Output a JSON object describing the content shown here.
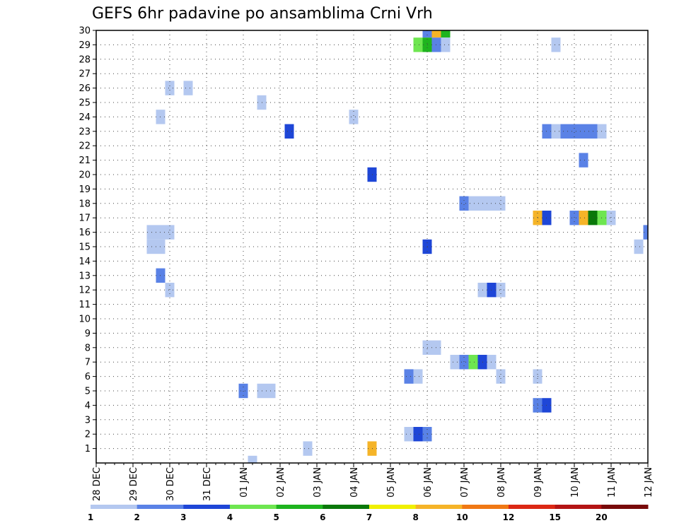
{
  "chart_data": {
    "type": "heatmap",
    "title": "GEFS 6hr padavine po ansamblima Crni Vrh",
    "xlabel": "",
    "ylabel": "",
    "x_ticks": [
      "28 DEC",
      "29 DEC",
      "30 DEC",
      "31 DEC",
      "01 JAN",
      "02 JAN",
      "03 JAN",
      "04 JAN",
      "05 JAN",
      "06 JAN",
      "07 JAN",
      "08 JAN",
      "09 JAN",
      "10 JAN",
      "11 JAN",
      "12 JAN"
    ],
    "y_ticks": [
      1,
      2,
      3,
      4,
      5,
      6,
      7,
      8,
      9,
      10,
      11,
      12,
      13,
      14,
      15,
      16,
      17,
      18,
      19,
      20,
      21,
      22,
      23,
      24,
      25,
      26,
      27,
      28,
      29,
      30
    ],
    "xlim": [
      0,
      60
    ],
    "ylim": [
      0,
      30
    ],
    "grid": true,
    "colorbar": {
      "labels": [
        "1",
        "2",
        "3",
        "4",
        "5",
        "6",
        "7",
        "8",
        "10",
        "12",
        "15",
        "20"
      ],
      "colors": [
        "#b4c8f0",
        "#5a82e6",
        "#1e46d7",
        "#6ee650",
        "#1eb41e",
        "#0a780a",
        "#f0f000",
        "#f5b428",
        "#f07814",
        "#dc2814",
        "#b41414",
        "#780a0a"
      ]
    },
    "cells": [
      {
        "t": 36,
        "m": 30,
        "c": 1
      },
      {
        "t": 37,
        "m": 30,
        "c": 7
      },
      {
        "t": 38,
        "m": 30,
        "c": 4
      },
      {
        "t": 35,
        "m": 29,
        "c": 3
      },
      {
        "t": 36,
        "m": 29,
        "c": 4
      },
      {
        "t": 37,
        "m": 29,
        "c": 1
      },
      {
        "t": 38,
        "m": 29,
        "c": 0
      },
      {
        "t": 50,
        "m": 29,
        "c": 0
      },
      {
        "t": 8,
        "m": 26,
        "c": 0
      },
      {
        "t": 10,
        "m": 26,
        "c": 0
      },
      {
        "t": 18,
        "m": 25,
        "c": 0
      },
      {
        "t": 7,
        "m": 24,
        "c": 0
      },
      {
        "t": 28,
        "m": 24,
        "c": 0
      },
      {
        "t": 21,
        "m": 23,
        "c": 2
      },
      {
        "t": 49,
        "m": 23,
        "c": 1
      },
      {
        "t": 50,
        "m": 23,
        "c": 0
      },
      {
        "t": 51,
        "m": 23,
        "c": 1
      },
      {
        "t": 52,
        "m": 23,
        "c": 1
      },
      {
        "t": 53,
        "m": 23,
        "c": 1
      },
      {
        "t": 54,
        "m": 23,
        "c": 1
      },
      {
        "t": 55,
        "m": 23,
        "c": 0
      },
      {
        "t": 53,
        "m": 21,
        "c": 1
      },
      {
        "t": 30,
        "m": 20,
        "c": 2
      },
      {
        "t": 40,
        "m": 18,
        "c": 1
      },
      {
        "t": 41,
        "m": 18,
        "c": 0
      },
      {
        "t": 42,
        "m": 18,
        "c": 0
      },
      {
        "t": 43,
        "m": 18,
        "c": 0
      },
      {
        "t": 44,
        "m": 18,
        "c": 0
      },
      {
        "t": 48,
        "m": 17,
        "c": 7
      },
      {
        "t": 49,
        "m": 17,
        "c": 2
      },
      {
        "t": 52,
        "m": 17,
        "c": 1
      },
      {
        "t": 53,
        "m": 17,
        "c": 7
      },
      {
        "t": 54,
        "m": 17,
        "c": 5
      },
      {
        "t": 55,
        "m": 17,
        "c": 3
      },
      {
        "t": 56,
        "m": 17,
        "c": 0
      },
      {
        "t": 6,
        "m": 16,
        "c": 0
      },
      {
        "t": 7,
        "m": 16,
        "c": 0
      },
      {
        "t": 8,
        "m": 16,
        "c": 0
      },
      {
        "t": 60,
        "m": 16,
        "c": 1
      },
      {
        "t": 6,
        "m": 15,
        "c": 0
      },
      {
        "t": 7,
        "m": 15,
        "c": 0
      },
      {
        "t": 36,
        "m": 15,
        "c": 2
      },
      {
        "t": 59,
        "m": 15,
        "c": 0
      },
      {
        "t": 7,
        "m": 13,
        "c": 1
      },
      {
        "t": 8,
        "m": 12,
        "c": 0
      },
      {
        "t": 42,
        "m": 12,
        "c": 0
      },
      {
        "t": 43,
        "m": 12,
        "c": 2
      },
      {
        "t": 44,
        "m": 12,
        "c": 0
      },
      {
        "t": 36,
        "m": 8,
        "c": 0
      },
      {
        "t": 37,
        "m": 8,
        "c": 0
      },
      {
        "t": 39,
        "m": 7,
        "c": 0
      },
      {
        "t": 40,
        "m": 7,
        "c": 1
      },
      {
        "t": 41,
        "m": 7,
        "c": 3
      },
      {
        "t": 42,
        "m": 7,
        "c": 2
      },
      {
        "t": 43,
        "m": 7,
        "c": 0
      },
      {
        "t": 34,
        "m": 6,
        "c": 1
      },
      {
        "t": 35,
        "m": 6,
        "c": 0
      },
      {
        "t": 44,
        "m": 6,
        "c": 0
      },
      {
        "t": 48,
        "m": 6,
        "c": 0
      },
      {
        "t": 16,
        "m": 5,
        "c": 1
      },
      {
        "t": 18,
        "m": 5,
        "c": 0
      },
      {
        "t": 19,
        "m": 5,
        "c": 0
      },
      {
        "t": 48,
        "m": 4,
        "c": 1
      },
      {
        "t": 49,
        "m": 4,
        "c": 2
      },
      {
        "t": 34,
        "m": 2,
        "c": 0
      },
      {
        "t": 35,
        "m": 2,
        "c": 2
      },
      {
        "t": 36,
        "m": 2,
        "c": 1
      },
      {
        "t": 23,
        "m": 1,
        "c": 0
      },
      {
        "t": 30,
        "m": 1,
        "c": 7
      },
      {
        "t": 17,
        "m": 0,
        "c": 0
      }
    ]
  }
}
